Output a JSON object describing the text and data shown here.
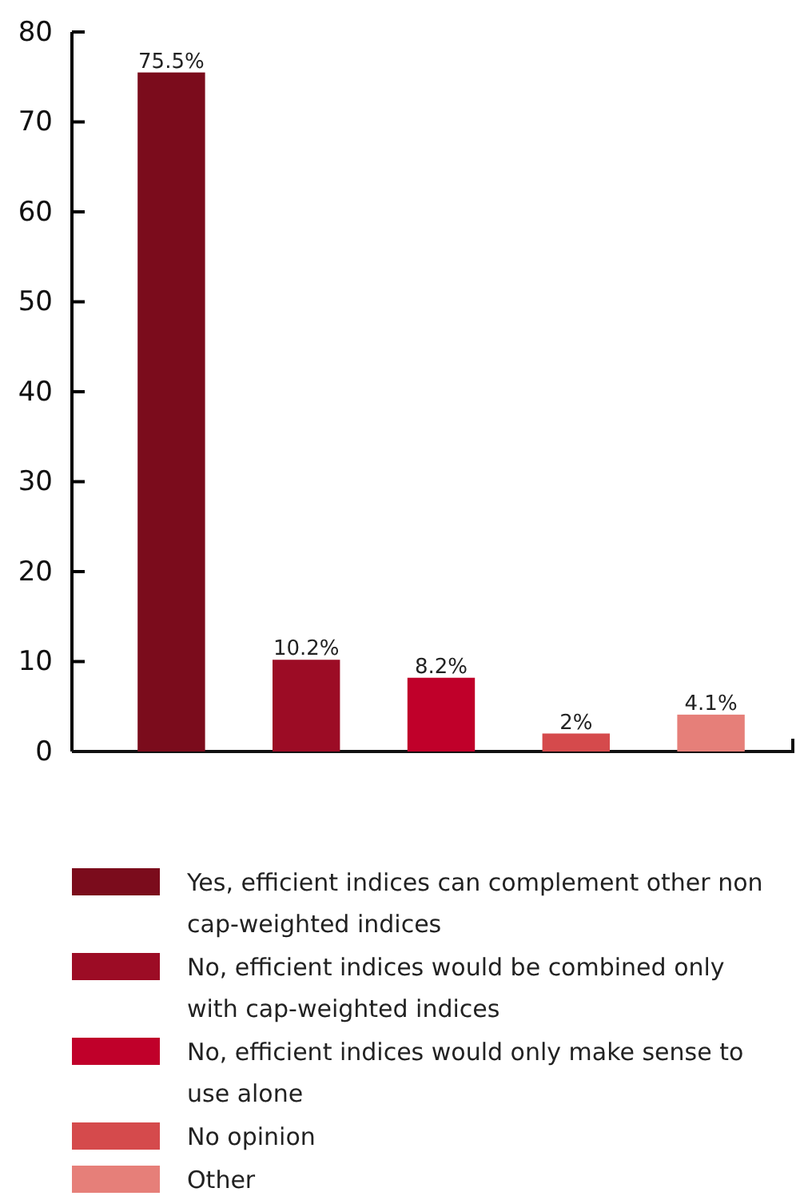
{
  "chart_data": {
    "type": "bar",
    "categories": [
      null,
      null,
      null,
      null,
      null
    ],
    "ylim": [
      0,
      80
    ],
    "yticks": [
      0,
      10,
      20,
      30,
      40,
      50,
      60,
      70,
      80
    ],
    "legend": "bottom",
    "grid": false,
    "series": [
      {
        "name": "Yes, efficient indices can complement other non cap-weighted indices",
        "color": "#7b0c1c",
        "values": [
          75.5,
          null,
          null,
          null,
          null
        ],
        "value_labels": [
          "75.5%",
          null,
          null,
          null,
          null
        ]
      },
      {
        "name": "No, efficient indices would be combined only with cap-weighted indices",
        "color": "#9c0c25",
        "values": [
          null,
          10.2,
          null,
          null,
          null
        ],
        "value_labels": [
          null,
          "10.2%",
          null,
          null,
          null
        ]
      },
      {
        "name": "No, efficient indices would only make sense to use alone",
        "color": "#c0002a",
        "values": [
          null,
          null,
          8.2,
          null,
          null
        ],
        "value_labels": [
          null,
          null,
          "8.2%",
          null,
          null
        ]
      },
      {
        "name": "No opinion",
        "color": "#d54a4c",
        "values": [
          null,
          null,
          null,
          2,
          null
        ],
        "value_labels": [
          null,
          null,
          null,
          "2%",
          null
        ]
      },
      {
        "name": "Other",
        "color": "#e67f79",
        "values": [
          null,
          null,
          null,
          null,
          4.1
        ],
        "value_labels": [
          null,
          null,
          null,
          null,
          "4.1%"
        ]
      }
    ]
  }
}
